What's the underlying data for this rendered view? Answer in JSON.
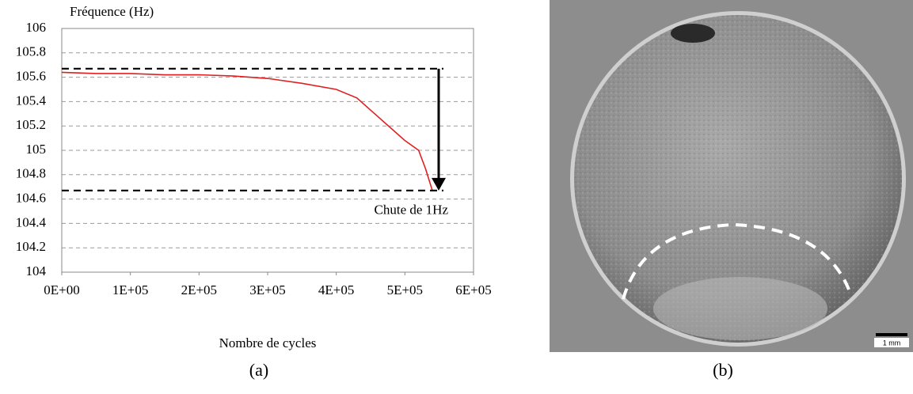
{
  "chart_data": {
    "type": "line",
    "y_label": "Fréquence (Hz)",
    "x_label": "Nombre de cycles",
    "x": [
      0,
      50000,
      100000,
      150000,
      200000,
      250000,
      300000,
      350000,
      400000,
      430000,
      450000,
      480000,
      500000,
      520000,
      530000,
      540000
    ],
    "series": [
      {
        "name": "Fréquence",
        "color": "#e02020",
        "values": [
          105.64,
          105.63,
          105.63,
          105.62,
          105.62,
          105.61,
          105.59,
          105.55,
          105.5,
          105.43,
          105.33,
          105.18,
          105.08,
          105.0,
          104.85,
          104.67
        ]
      }
    ],
    "xlim": [
      0,
      600000
    ],
    "xticks": [
      {
        "value": 0,
        "label": "0E+00"
      },
      {
        "value": 100000,
        "label": "1E+05"
      },
      {
        "value": 200000,
        "label": "2E+05"
      },
      {
        "value": 300000,
        "label": "3E+05"
      },
      {
        "value": 400000,
        "label": "4E+05"
      },
      {
        "value": 500000,
        "label": "5E+05"
      },
      {
        "value": 600000,
        "label": "6E+05"
      }
    ],
    "ylim": [
      104,
      106
    ],
    "yticks": [
      104,
      104.2,
      104.4,
      104.6,
      104.8,
      105,
      105.2,
      105.4,
      105.6,
      105.8,
      106
    ],
    "grid": true,
    "hlines": [
      105.67,
      104.67
    ],
    "annotation": "Chute de 1Hz"
  },
  "figure": {
    "caption_a": "(a)",
    "caption_b": "(b)",
    "scale_bar": "1 mm"
  }
}
